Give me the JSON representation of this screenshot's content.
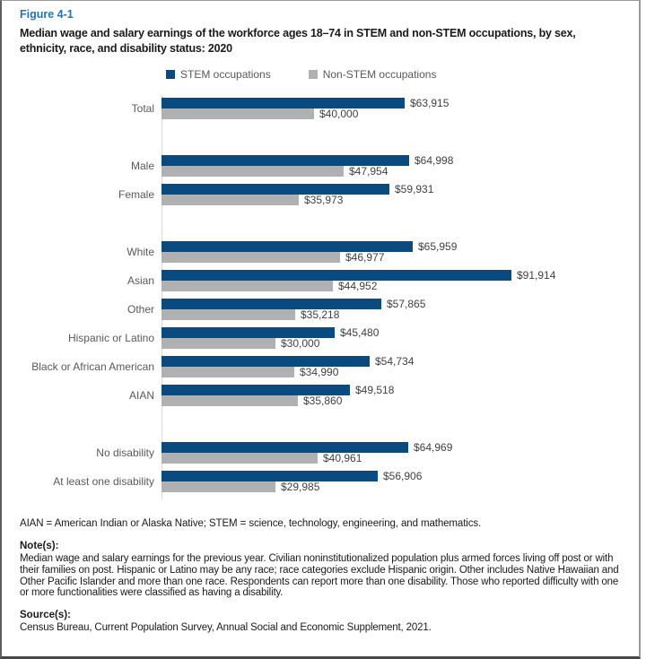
{
  "figure": {
    "label": "Figure 4-1",
    "title": "Median wage and salary earnings of the workforce ages 18–74 in STEM and non-STEM occupations, by sex, ethnicity, race, and disability status: 2020"
  },
  "legend": [
    {
      "label": "STEM occupations",
      "color": "#0b4a7f"
    },
    {
      "label": "Non-STEM occupations",
      "color": "#b1b1b1"
    }
  ],
  "chart_data": {
    "type": "bar",
    "orientation": "horizontal",
    "unit": "USD",
    "xlim": [
      0,
      100000
    ],
    "grid": false,
    "legend_position": "top",
    "colors": {
      "stem": "#0b4a7f",
      "non_stem": "#b1b1b1"
    },
    "series_names": [
      "STEM occupations",
      "Non-STEM occupations"
    ],
    "groups": [
      {
        "name": "total",
        "rows": [
          {
            "label": "Total",
            "stem": 63915,
            "non_stem": 40000
          }
        ]
      },
      {
        "name": "sex",
        "rows": [
          {
            "label": "Male",
            "stem": 64998,
            "non_stem": 47954
          },
          {
            "label": "Female",
            "stem": 59931,
            "non_stem": 35973
          }
        ]
      },
      {
        "name": "ethnicity-race",
        "rows": [
          {
            "label": "White",
            "stem": 65959,
            "non_stem": 46977
          },
          {
            "label": "Asian",
            "stem": 91914,
            "non_stem": 44952
          },
          {
            "label": "Other",
            "stem": 57865,
            "non_stem": 35218
          },
          {
            "label": "Hispanic or Latino",
            "stem": 45480,
            "non_stem": 30000
          },
          {
            "label": "Black or African American",
            "stem": 54734,
            "non_stem": 34990
          },
          {
            "label": "AIAN",
            "stem": 49518,
            "non_stem": 35860
          }
        ]
      },
      {
        "name": "disability",
        "rows": [
          {
            "label": "No disability",
            "stem": 64969,
            "non_stem": 40961
          },
          {
            "label": "At least one disability",
            "stem": 56906,
            "non_stem": 29985
          }
        ]
      }
    ]
  },
  "footer": {
    "abbreviations": "AIAN = American Indian or Alaska Native; STEM = science, technology, engineering, and mathematics.",
    "notes_heading": "Note(s):",
    "notes": "Median wage and salary earnings for the previous year. Civilian noninstitutionalized population plus armed forces living off post or with their families on post. Hispanic or Latino may be any race; race categories exclude Hispanic origin. Other includes Native Hawaiian and Other Pacific Islander and more than one race. Respondents can report more than one disability. Those who reported difficulty with one or more functionalities were classified as having a disability.",
    "sources_heading": "Source(s):",
    "sources": "Census Bureau, Current Population Survey, Annual Social and Economic Supplement, 2021."
  }
}
